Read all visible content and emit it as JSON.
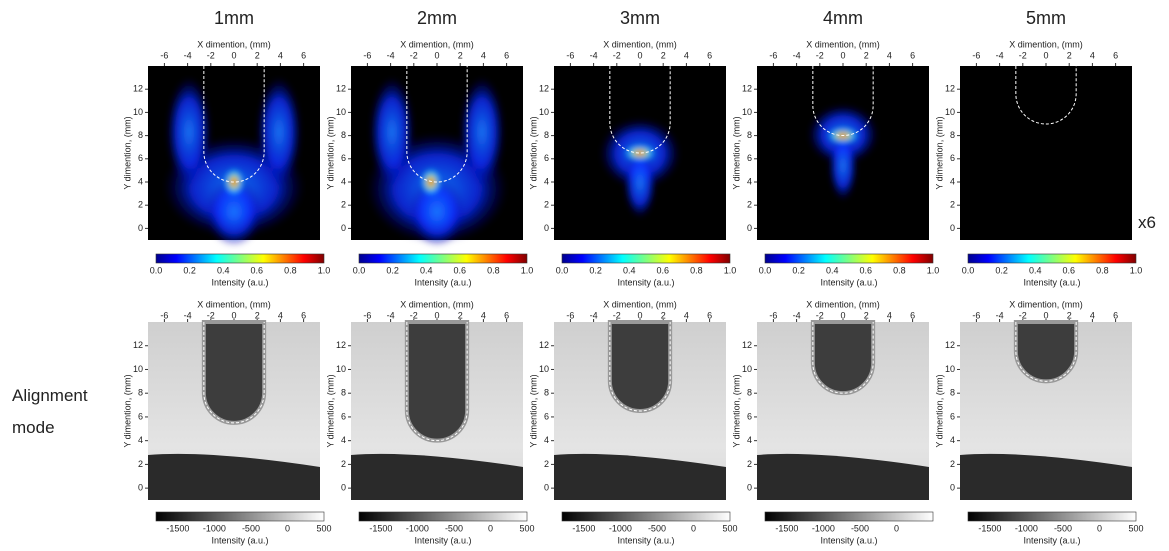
{
  "columns": [
    "1mm",
    "2mm",
    "3mm",
    "4mm",
    "5mm"
  ],
  "row_label": "Alignment mode",
  "scale_note": "x6",
  "x_axis_label": "X dimention, (mm)",
  "y_axis_label": "Y dimention, (mm)",
  "colorbar_label": "Intensity (a.u.)",
  "x_ticks": [
    "-6",
    "-4",
    "-2",
    "0",
    "2",
    "4",
    "6"
  ],
  "y_ticks": [
    "0",
    "2",
    "4",
    "6",
    "8",
    "10",
    "12"
  ],
  "top_colorbar_ticks": [
    "0.0",
    "0.2",
    "0.4",
    "0.6",
    "0.8",
    "1.0"
  ],
  "bottom_colorbar_ticks": [
    [
      "-1500",
      "-1000",
      "-500",
      "0",
      "500"
    ],
    [
      "-1500",
      "-1000",
      "-500",
      "0",
      "500"
    ],
    [
      "-1500",
      "-1000",
      "-500",
      "0",
      "500"
    ],
    [
      "-1500",
      "-1000",
      "-500",
      "0"
    ],
    [
      "-1500",
      "-1000",
      "-500",
      "0",
      "500"
    ]
  ]
}
